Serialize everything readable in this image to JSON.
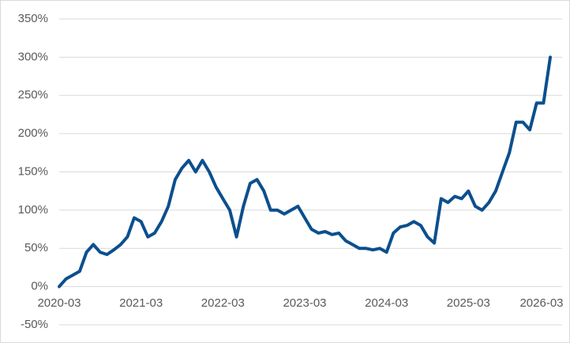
{
  "chart_data": {
    "type": "line",
    "x": [
      "2020-03",
      "2020-04",
      "2020-05",
      "2020-06",
      "2020-07",
      "2020-08",
      "2020-09",
      "2020-10",
      "2020-11",
      "2020-12",
      "2021-01",
      "2021-02",
      "2021-03",
      "2021-04",
      "2021-05",
      "2021-06",
      "2021-07",
      "2021-08",
      "2021-09",
      "2021-10",
      "2021-11",
      "2021-12",
      "2022-01",
      "2022-02",
      "2022-03",
      "2022-04",
      "2022-05",
      "2022-06",
      "2022-07",
      "2022-08",
      "2022-09",
      "2022-10",
      "2022-11",
      "2022-12",
      "2023-01",
      "2023-02",
      "2023-03",
      "2023-04",
      "2023-05",
      "2023-06",
      "2023-07",
      "2023-08",
      "2023-09",
      "2023-10",
      "2023-11",
      "2023-12",
      "2024-01",
      "2024-02",
      "2024-03",
      "2024-04",
      "2024-05",
      "2024-06",
      "2024-07",
      "2024-08",
      "2024-09",
      "2024-10",
      "2024-11",
      "2024-12",
      "2025-01",
      "2025-02",
      "2025-03",
      "2025-04",
      "2025-05",
      "2025-06",
      "2025-07",
      "2025-08",
      "2025-09",
      "2025-10",
      "2025-11",
      "2025-12",
      "2026-01",
      "2026-02",
      "2026-03"
    ],
    "series": [
      {
        "color": "#0c4f8e",
        "values": [
          0,
          10,
          15,
          20,
          45,
          55,
          45,
          42,
          48,
          55,
          65,
          90,
          85,
          65,
          70,
          85,
          105,
          140,
          155,
          165,
          150,
          165,
          150,
          130,
          115,
          100,
          65,
          105,
          135,
          140,
          125,
          100,
          100,
          95,
          100,
          105,
          90,
          75,
          70,
          72,
          68,
          70,
          60,
          55,
          50,
          50,
          48,
          50,
          45,
          70,
          78,
          80,
          85,
          80,
          65,
          57,
          115,
          110,
          118,
          115,
          125,
          105,
          100,
          110,
          125,
          150,
          175,
          215,
          215,
          205,
          240,
          240,
          300
        ]
      }
    ],
    "xticks": [
      "2020-03",
      "2021-03",
      "2022-03",
      "2023-03",
      "2024-03",
      "2025-03",
      "2026-03"
    ],
    "ylim": [
      -50,
      350
    ],
    "yticks": [
      {
        "value": -50,
        "label": "-50%"
      },
      {
        "value": 0,
        "label": "0%"
      },
      {
        "value": 50,
        "label": "50%"
      },
      {
        "value": 100,
        "label": "100%"
      },
      {
        "value": 150,
        "label": "150%"
      },
      {
        "value": 200,
        "label": "200%"
      },
      {
        "value": 250,
        "label": "250%"
      },
      {
        "value": 300,
        "label": "300%"
      },
      {
        "value": 350,
        "label": "350%"
      }
    ],
    "grid": true
  }
}
